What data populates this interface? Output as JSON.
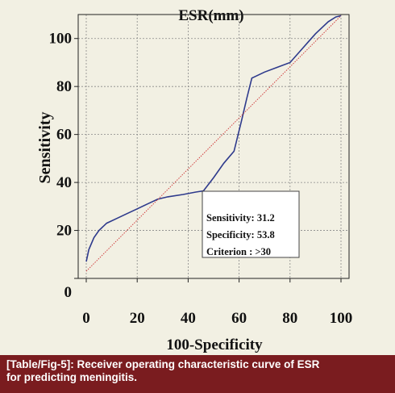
{
  "chart_data": {
    "type": "line",
    "title": "ESR(mm)",
    "xlabel": "100-Specificity",
    "ylabel": "Sensitivity",
    "xlim": [
      0,
      100
    ],
    "ylim": [
      0,
      110
    ],
    "x_ticks": [
      "0",
      "20",
      "40",
      "60",
      "80",
      "100"
    ],
    "y_ticks": [
      "0",
      "20",
      "40",
      "60",
      "80",
      "100"
    ],
    "grid": true,
    "series": [
      {
        "color": "#2e3a8c",
        "style": "solid",
        "x": [
          0,
          1,
          3,
          5,
          8,
          12,
          16,
          20,
          24,
          28,
          32,
          38,
          43,
          46,
          50,
          54,
          58,
          61,
          63,
          65,
          70,
          75,
          80,
          85,
          90,
          95,
          98,
          100
        ],
        "y": [
          7,
          12,
          17,
          20,
          23,
          25,
          27,
          29,
          31,
          33,
          34,
          35,
          36,
          36.5,
          42,
          48,
          53,
          66,
          75,
          83.5,
          86,
          88,
          90,
          96,
          102,
          107,
          109,
          109.5
        ]
      },
      {
        "color": "#d04040",
        "style": "dotted",
        "x": [
          0,
          100
        ],
        "y": [
          3,
          109.5
        ]
      }
    ],
    "annotations": [
      "Sensitivity: 31.2",
      "Specificity: 53.8",
      "Criterion : >30"
    ]
  },
  "caption": {
    "line1": "[Table/Fig-5]: Receiver operating characteristic curve of ESR",
    "line2": "for predicting meningitis."
  }
}
